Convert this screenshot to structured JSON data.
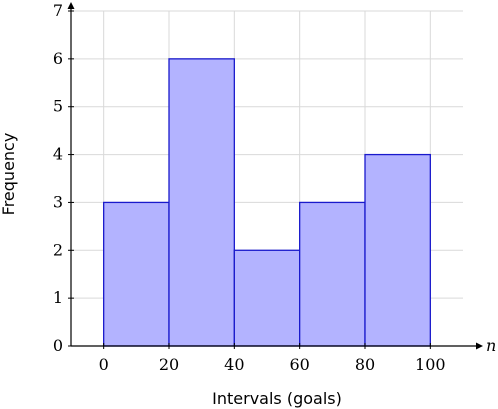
{
  "chart_data": {
    "type": "bar",
    "xlabel": "Intervals (goals)",
    "ylabel": "Frequency",
    "x_axis_var": "n",
    "bins": [
      {
        "start": 0,
        "end": 20,
        "value": 3
      },
      {
        "start": 20,
        "end": 40,
        "value": 6
      },
      {
        "start": 40,
        "end": 60,
        "value": 2
      },
      {
        "start": 60,
        "end": 80,
        "value": 3
      },
      {
        "start": 80,
        "end": 100,
        "value": 4
      }
    ],
    "xlim": [
      -10,
      110
    ],
    "ylim": [
      0,
      7
    ],
    "x_ticks": [
      "0",
      "20",
      "40",
      "60",
      "80",
      "100"
    ],
    "y_ticks": [
      "0",
      "1",
      "2",
      "3",
      "4",
      "5",
      "6",
      "7"
    ],
    "grid": true,
    "bar_fill": "#b3b3ff",
    "bar_stroke": "#1a1acc"
  }
}
